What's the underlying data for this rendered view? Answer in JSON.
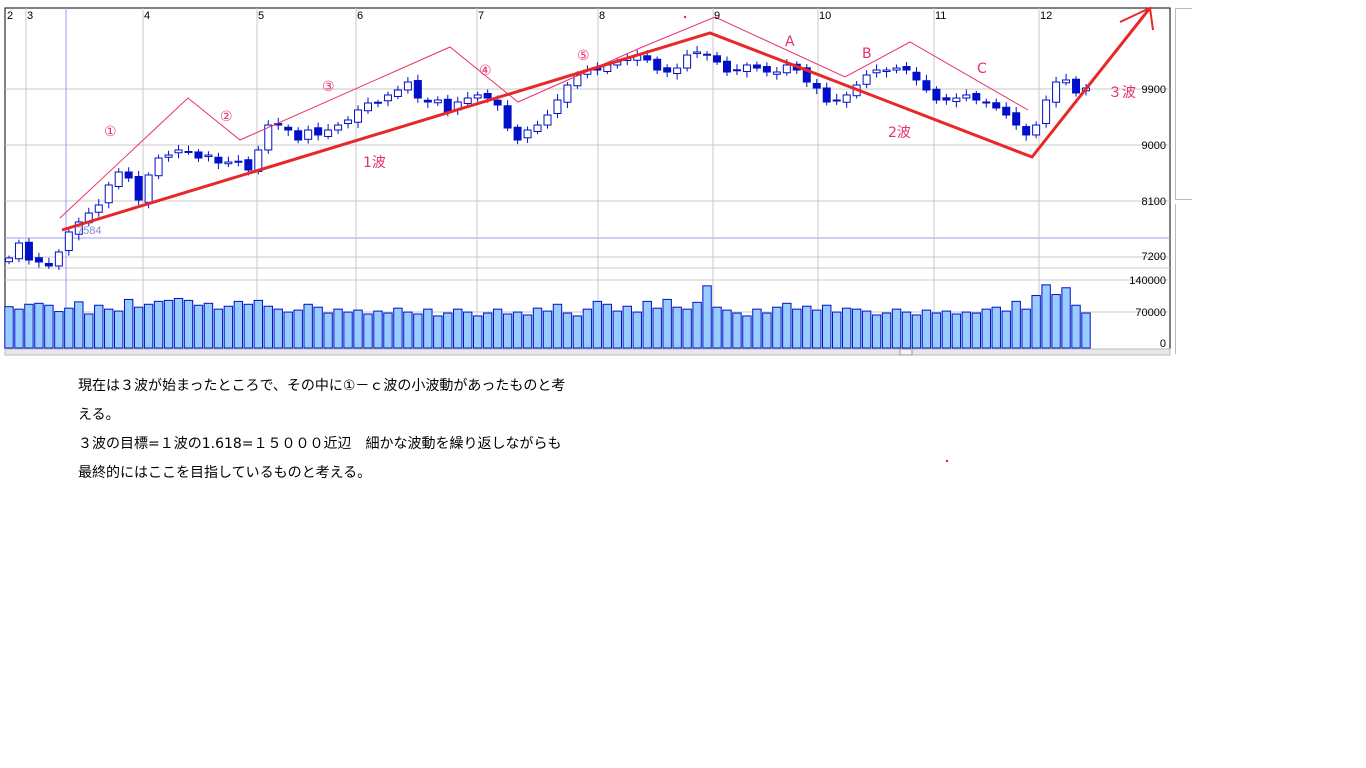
{
  "chart_data": {
    "type": "candlestick",
    "x_tick_labels": [
      "2",
      "3",
      "4",
      "5",
      "6",
      "7",
      "8",
      "9",
      "10",
      "11",
      "12"
    ],
    "price_axis": {
      "ticks": [
        7200,
        8100,
        9000,
        9900
      ],
      "range": [
        6850,
        11170
      ]
    },
    "volume_axis": {
      "ticks": [
        0,
        70000,
        140000
      ],
      "range": [
        0,
        140000
      ]
    },
    "grid": true,
    "marker_label": "7584",
    "closes": [
      7184,
      7425,
      7152,
      7120,
      7056,
      7281,
      7602,
      7763,
      7907,
      8036,
      8357,
      8566,
      8470,
      8116,
      8518,
      8791,
      8839,
      8920,
      8888,
      8791,
      8839,
      8711,
      8727,
      8727,
      8598,
      8920,
      9321,
      9321,
      9241,
      9080,
      9241,
      9161,
      9241,
      9321,
      9402,
      9563,
      9675,
      9675,
      9804,
      9884,
      10012,
      9755,
      9691,
      9723,
      9530,
      9691,
      9755,
      9804,
      9755,
      9643,
      9273,
      9080,
      9241,
      9321,
      9482,
      9723,
      9964,
      10125,
      10205,
      10205,
      10286,
      10334,
      10398,
      10446,
      10366,
      10205,
      10173,
      10237,
      10446,
      10495,
      10446,
      10334,
      10173,
      10205,
      10286,
      10237,
      10173,
      10173,
      10286,
      10205,
      10012,
      9916,
      9691,
      9723,
      9804,
      9964,
      10125,
      10205,
      10205,
      10237,
      10205,
      10045,
      9884,
      9723,
      9723,
      9755,
      9804,
      9723,
      9691,
      9595,
      9482,
      9321,
      9161,
      9321,
      9723,
      10012,
      10045,
      9836,
      9916
    ],
    "volumes": [
      85000,
      80000,
      90000,
      92000,
      88000,
      75000,
      82000,
      95000,
      70000,
      88000,
      80000,
      76000,
      100000,
      84000,
      90000,
      96000,
      98000,
      102000,
      98000,
      88000,
      92000,
      80000,
      86000,
      96000,
      90000,
      98000,
      86000,
      80000,
      74000,
      78000,
      90000,
      84000,
      72000,
      80000,
      74000,
      78000,
      70000,
      76000,
      72000,
      82000,
      74000,
      70000,
      80000,
      66000,
      72000,
      80000,
      74000,
      66000,
      72000,
      80000,
      70000,
      74000,
      68000,
      82000,
      76000,
      90000,
      72000,
      66000,
      80000,
      96000,
      90000,
      76000,
      86000,
      74000,
      96000,
      82000,
      100000,
      84000,
      80000,
      94000,
      128000,
      84000,
      78000,
      72000,
      66000,
      80000,
      72000,
      84000,
      92000,
      80000,
      86000,
      78000,
      88000,
      74000,
      82000,
      80000,
      76000,
      68000,
      72000,
      80000,
      74000,
      68000,
      78000,
      72000,
      76000,
      70000,
      74000,
      72000,
      80000,
      84000,
      76000,
      96000,
      80000,
      108000,
      130000,
      110000,
      124000,
      88000,
      72000
    ],
    "annotations": {
      "sub_waves": [
        "①",
        "②",
        "③",
        "④",
        "⑤",
        "A",
        "B",
        "C"
      ],
      "main_waves": [
        "1波",
        "2波",
        "３波"
      ]
    },
    "colors": {
      "up_candle": "#ffffff",
      "down_candle": "#0010c8",
      "candle_line": "#0010c8",
      "volume_fill": "#99ccff",
      "wave_main": "#e82828",
      "wave_sub": "#e8306a",
      "grid": "#c8c8c8"
    }
  },
  "note": {
    "lines": [
      "現在は３波が始まったところで、その中に①－ｃ波の小波動があったものと考",
      "える。",
      "３波の目標=１波の1.618=１５０００近辺　細かな波動を繰り返しながらも",
      "最終的にはここを目指しているものと考える。"
    ]
  }
}
